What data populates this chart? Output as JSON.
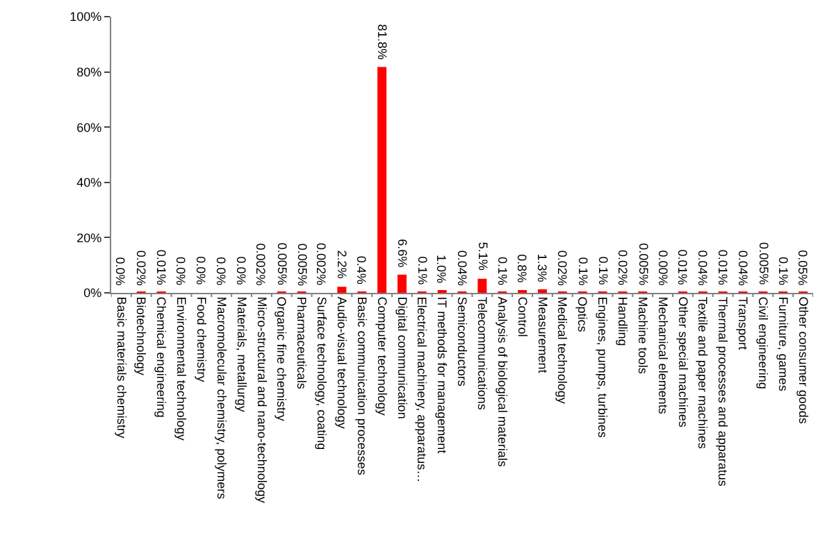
{
  "chart_data": {
    "type": "bar",
    "categories": [
      "Basic materials chemistry",
      "Biotechnology",
      "Chemical engineering",
      "Environmental technology",
      "Food chemistry",
      "Macromolecular chemistry, polymers",
      "Materials, metallurgy",
      "Micro-structural and nano-technology",
      "Organic fine chemistry",
      "Pharmaceuticals",
      "Surface technology, coating",
      "Audio-visual technology",
      "Basic communication processes",
      "Computer technology",
      "Digital communication",
      "Electrical machinery, apparatus…",
      "IT methods for management",
      "Semiconductors",
      "Telecommunications",
      "Analysis of biological materials",
      "Control",
      "Measurement",
      "Medical technology",
      "Optics",
      "Engines, pumps, turbines",
      "Handling",
      "Machine tools",
      "Mechanical elements",
      "Other special machines",
      "Textile and paper machines",
      "Thermal processes and apparatus",
      "Transport",
      "Civil engineering",
      "Furniture, games",
      "Other consumer goods"
    ],
    "values": [
      0.0,
      0.02,
      0.01,
      0.0,
      0.0,
      0.0,
      0.0,
      0.002,
      0.005,
      0.005,
      0.002,
      2.2,
      0.4,
      81.8,
      6.6,
      0.1,
      1.0,
      0.04,
      5.1,
      0.1,
      0.8,
      1.3,
      0.02,
      0.1,
      0.1,
      0.02,
      0.005,
      0.0,
      0.01,
      0.04,
      0.01,
      0.04,
      0.005,
      0.1,
      0.05
    ],
    "value_labels": [
      "0.0%",
      "0.02%",
      "0.01%",
      "0.0%",
      "0.0%",
      "0.0%",
      "0.0%",
      "0.002%",
      "0.005%",
      "0.005%",
      "0.002%",
      "2.2%",
      "0.4%",
      "81.8%",
      "6.6%",
      "0.1%",
      "1.0%",
      "0.04%",
      "5.1%",
      "0.1%",
      "0.8%",
      "1.3%",
      "0.02%",
      "0.1%",
      "0.1%",
      "0.02%",
      "0.005%",
      "0.00%",
      "0.01%",
      "0.04%",
      "0.01%",
      "0.04%",
      "0.005%",
      "0.1%",
      "0.05%"
    ],
    "color": "#ff0000",
    "ylim": [
      0,
      100
    ],
    "yticks": [
      {
        "value": 0,
        "label": "0%"
      },
      {
        "value": 20,
        "label": "20%"
      },
      {
        "value": 40,
        "label": "40%"
      },
      {
        "value": 60,
        "label": "60%"
      },
      {
        "value": 80,
        "label": "80%"
      },
      {
        "value": 100,
        "label": "100%"
      }
    ],
    "grid": false
  }
}
